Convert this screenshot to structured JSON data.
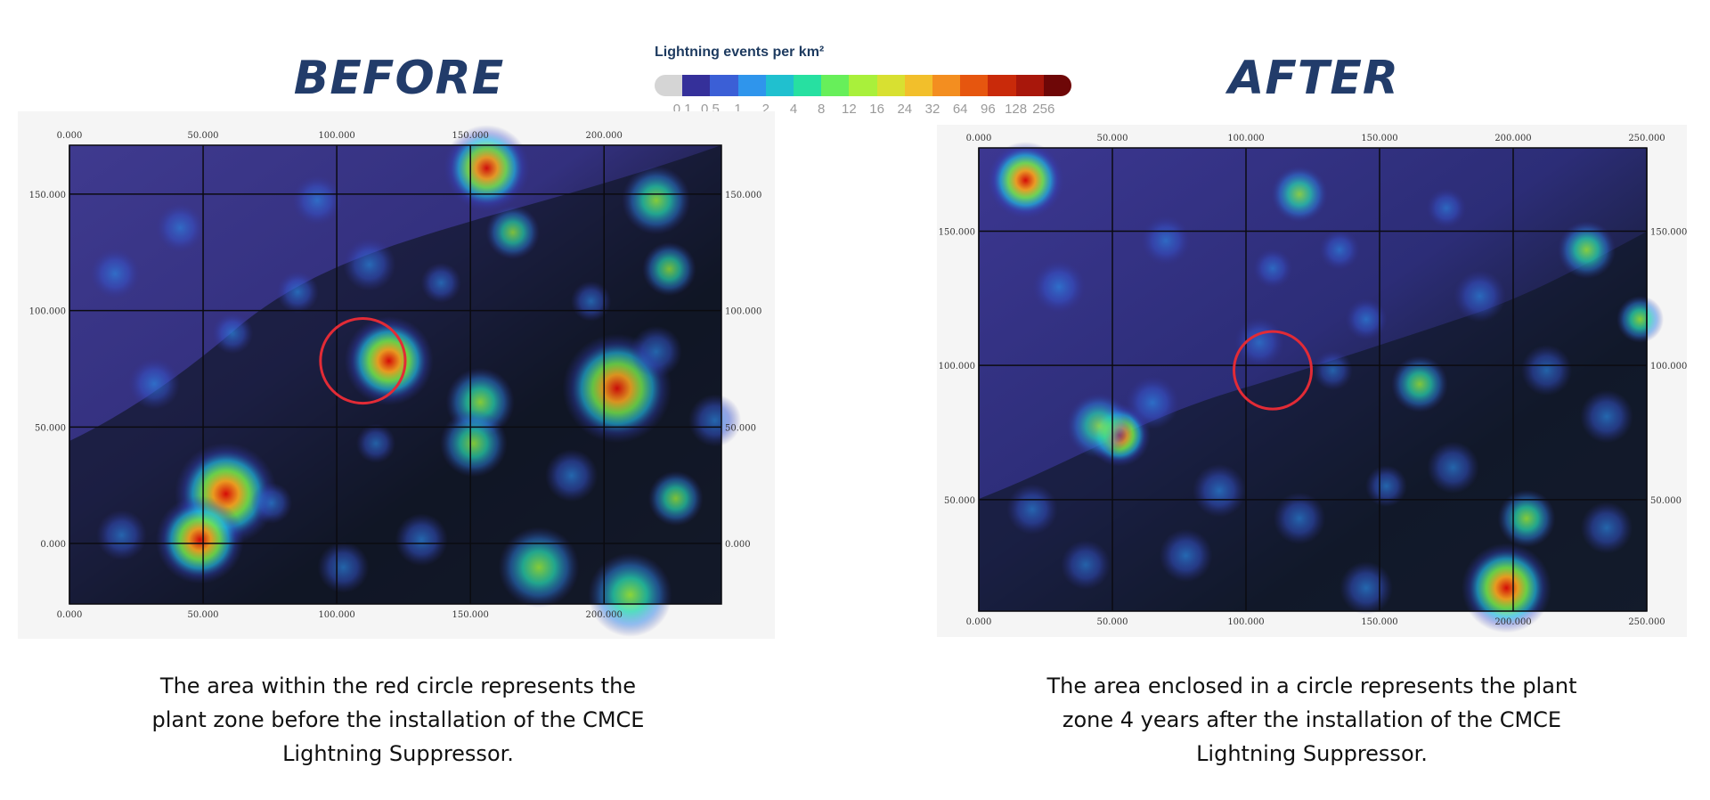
{
  "headings": {
    "before": "BEFORE",
    "after": "AFTER"
  },
  "legend": {
    "title": "Lightning events per km²",
    "ticks": [
      "0.1",
      "0.5",
      "1",
      "2",
      "4",
      "8",
      "12",
      "16",
      "24",
      "32",
      "64",
      "96",
      "128",
      "256"
    ],
    "colors": [
      "#d5d5d5",
      "#35309a",
      "#3b5fd6",
      "#2f95ec",
      "#20c0cf",
      "#27e0a1",
      "#67ef5a",
      "#a9f03b",
      "#d8e031",
      "#f2bf2b",
      "#f38e20",
      "#e6560f",
      "#c92a0a",
      "#a8170b",
      "#6e0707"
    ]
  },
  "maps": {
    "before": {
      "x_ticks": [
        "0.000",
        "50.000",
        "100.000",
        "150.000",
        "200.000"
      ],
      "x_ticks_bottom": [
        "0.000",
        "50.000",
        "100.000",
        "150.000",
        "200.000"
      ],
      "y_ticks_left": [
        "150.000",
        "100.000",
        "50.000",
        "0.000"
      ],
      "y_ticks_right": [
        "150.000",
        "100.000",
        "50.000",
        "0.000"
      ],
      "hotspots": [
        [
          0.49,
          0.47,
          0.07,
          0.98
        ],
        [
          0.24,
          0.76,
          0.08,
          1.0
        ],
        [
          0.2,
          0.86,
          0.07,
          0.95
        ],
        [
          0.64,
          0.05,
          0.07,
          0.9
        ],
        [
          0.84,
          0.53,
          0.09,
          0.85
        ],
        [
          0.63,
          0.56,
          0.06,
          0.7
        ],
        [
          0.62,
          0.65,
          0.06,
          0.65
        ],
        [
          0.9,
          0.12,
          0.06,
          0.7
        ],
        [
          0.92,
          0.27,
          0.05,
          0.55
        ],
        [
          0.68,
          0.19,
          0.05,
          0.55
        ],
        [
          0.35,
          0.32,
          0.04,
          0.5
        ],
        [
          0.46,
          0.26,
          0.05,
          0.5
        ],
        [
          0.25,
          0.41,
          0.04,
          0.45
        ],
        [
          0.13,
          0.52,
          0.05,
          0.45
        ],
        [
          0.07,
          0.28,
          0.05,
          0.4
        ],
        [
          0.72,
          0.92,
          0.07,
          0.72
        ],
        [
          0.86,
          0.98,
          0.07,
          0.82
        ],
        [
          0.93,
          0.77,
          0.05,
          0.6
        ],
        [
          0.31,
          0.78,
          0.04,
          0.45
        ],
        [
          0.47,
          0.65,
          0.04,
          0.35
        ],
        [
          0.08,
          0.85,
          0.05,
          0.4
        ],
        [
          0.42,
          0.92,
          0.05,
          0.45
        ],
        [
          0.54,
          0.86,
          0.05,
          0.5
        ],
        [
          0.9,
          0.45,
          0.05,
          0.45
        ],
        [
          0.77,
          0.72,
          0.05,
          0.5
        ],
        [
          0.8,
          0.34,
          0.04,
          0.4
        ],
        [
          0.57,
          0.3,
          0.04,
          0.4
        ],
        [
          0.17,
          0.18,
          0.05,
          0.35
        ],
        [
          0.38,
          0.12,
          0.05,
          0.4
        ],
        [
          0.99,
          0.6,
          0.05,
          0.5
        ]
      ],
      "circle": [
        0.45,
        0.47,
        0.065
      ]
    },
    "after": {
      "x_ticks": [
        "0.000",
        "50.000",
        "100.000",
        "150.000",
        "200.000",
        "250.000"
      ],
      "x_ticks_bottom": [
        "0.000",
        "50.000",
        "100.000",
        "150.000",
        "200.000",
        "250.000"
      ],
      "y_ticks_left": [
        "150.000",
        "100.000",
        "50.000"
      ],
      "y_ticks_right": [
        "150.000",
        "100.000",
        "50.000"
      ],
      "hotspots": [
        [
          0.07,
          0.07,
          0.06,
          0.98
        ],
        [
          0.21,
          0.62,
          0.05,
          0.93
        ],
        [
          0.79,
          0.95,
          0.07,
          0.98
        ],
        [
          0.48,
          0.1,
          0.05,
          0.65
        ],
        [
          0.66,
          0.51,
          0.05,
          0.65
        ],
        [
          0.91,
          0.22,
          0.05,
          0.7
        ],
        [
          0.99,
          0.37,
          0.04,
          0.75
        ],
        [
          0.82,
          0.8,
          0.05,
          0.7
        ],
        [
          0.26,
          0.55,
          0.05,
          0.5
        ],
        [
          0.12,
          0.3,
          0.05,
          0.5
        ],
        [
          0.18,
          0.6,
          0.06,
          0.55
        ],
        [
          0.36,
          0.74,
          0.05,
          0.5
        ],
        [
          0.48,
          0.8,
          0.05,
          0.45
        ],
        [
          0.61,
          0.73,
          0.04,
          0.45
        ],
        [
          0.71,
          0.69,
          0.05,
          0.45
        ],
        [
          0.42,
          0.42,
          0.05,
          0.35
        ],
        [
          0.53,
          0.48,
          0.04,
          0.35
        ],
        [
          0.58,
          0.37,
          0.04,
          0.45
        ],
        [
          0.75,
          0.32,
          0.05,
          0.45
        ],
        [
          0.85,
          0.48,
          0.05,
          0.4
        ],
        [
          0.94,
          0.58,
          0.05,
          0.5
        ],
        [
          0.31,
          0.88,
          0.05,
          0.5
        ],
        [
          0.08,
          0.78,
          0.05,
          0.4
        ],
        [
          0.94,
          0.82,
          0.05,
          0.45
        ],
        [
          0.58,
          0.95,
          0.05,
          0.5
        ],
        [
          0.28,
          0.2,
          0.05,
          0.35
        ],
        [
          0.44,
          0.26,
          0.04,
          0.35
        ],
        [
          0.16,
          0.9,
          0.05,
          0.35
        ],
        [
          0.7,
          0.13,
          0.04,
          0.35
        ],
        [
          0.54,
          0.22,
          0.04,
          0.4
        ]
      ],
      "circle": [
        0.44,
        0.48,
        0.058
      ]
    }
  },
  "captions": {
    "before": [
      "The area within the red circle represents the",
      "plant zone before the installation of the CMCE",
      "Lightning Suppressor."
    ],
    "after": [
      "The area enclosed in a circle represents the plant",
      "zone 4 years after the installation of the CMCE",
      "Lightning Suppressor."
    ]
  }
}
